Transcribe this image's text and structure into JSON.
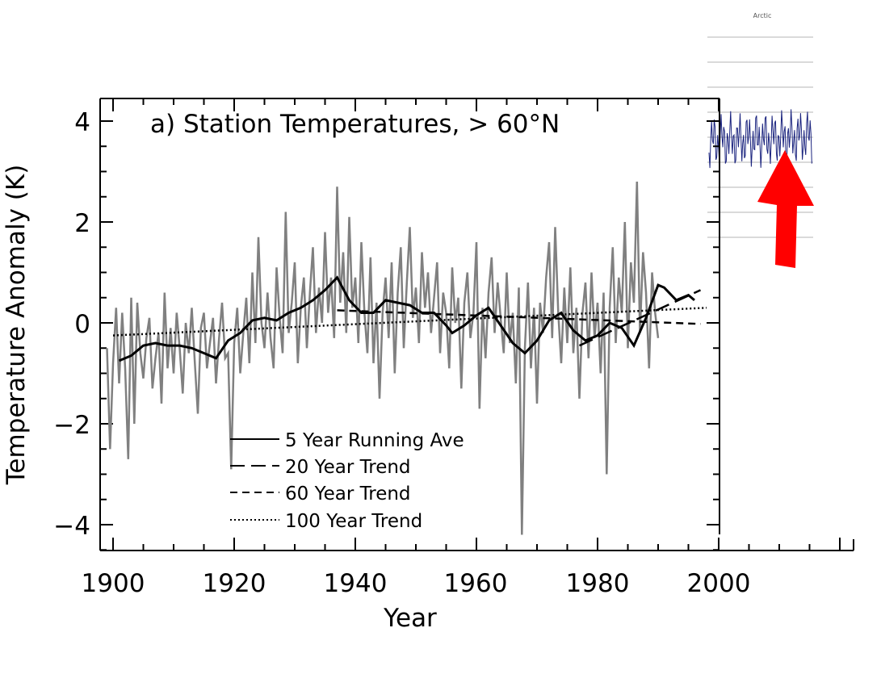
{
  "chart_data": {
    "type": "line",
    "title": "a) Station Temperatures, > 60°N",
    "xlabel": "Year",
    "ylabel": "Temperature Anomaly (K)",
    "xlim": [
      1900,
      2000
    ],
    "ylim": [
      -4.5,
      4.5
    ],
    "x_ticks": [
      "1900",
      "1920",
      "1940",
      "1960",
      "1980",
      "2000"
    ],
    "y_ticks": [
      "4",
      "2",
      "0",
      "−2",
      "−4"
    ],
    "legend_position": "bottom-center",
    "series": [
      {
        "name": "5 Year Running Ave",
        "style": "solid",
        "color": "#000000",
        "x": [
          1901,
          1903,
          1905,
          1907,
          1909,
          1911,
          1913,
          1915,
          1917,
          1919,
          1921,
          1923,
          1925,
          1927,
          1929,
          1931,
          1933,
          1935,
          1937,
          1939,
          1941,
          1943,
          1945,
          1947,
          1949,
          1951,
          1953,
          1955,
          1956,
          1958,
          1960,
          1962,
          1964,
          1966,
          1968,
          1970,
          1972,
          1974,
          1976,
          1978,
          1980,
          1982,
          1984,
          1986,
          1988,
          1990,
          1991,
          1993,
          1995,
          1996
        ],
        "y": [
          -0.75,
          -0.65,
          -0.45,
          -0.4,
          -0.45,
          -0.45,
          -0.5,
          -0.6,
          -0.7,
          -0.35,
          -0.2,
          0.05,
          0.1,
          0.05,
          0.2,
          0.3,
          0.45,
          0.65,
          0.9,
          0.45,
          0.2,
          0.2,
          0.45,
          0.4,
          0.35,
          0.2,
          0.2,
          -0.05,
          -0.2,
          -0.05,
          0.15,
          0.3,
          -0.05,
          -0.4,
          -0.6,
          -0.35,
          0.05,
          0.2,
          -0.15,
          -0.35,
          -0.25,
          0.0,
          -0.1,
          -0.45,
          0.1,
          0.75,
          0.7,
          0.45,
          0.55,
          0.45
        ]
      },
      {
        "name": "20 Year Trend",
        "style": "long-dash",
        "color": "#000000",
        "segments": [
          {
            "x": [
              1977,
              1997
            ],
            "y": [
              -0.45,
              0.65
            ]
          }
        ]
      },
      {
        "name": "60 Year Trend",
        "style": "dash",
        "color": "#000000",
        "segments": [
          {
            "x": [
              1937,
              1997
            ],
            "y": [
              0.25,
              -0.02
            ]
          }
        ]
      },
      {
        "name": "100 Year Trend",
        "style": "dotted",
        "color": "#000000",
        "segments": [
          {
            "x": [
              1900,
              1998
            ],
            "y": [
              -0.25,
              0.3
            ]
          }
        ]
      },
      {
        "name": "",
        "style": "annual",
        "color": "#808080",
        "x_start": 1899,
        "x_step": 0.5,
        "y": [
          -0.5,
          -2.5,
          -0.8,
          0.3,
          -1.2,
          0.2,
          -0.9,
          -2.7,
          0.5,
          -2.0,
          0.4,
          -0.6,
          -1.1,
          -0.3,
          0.1,
          -1.3,
          -0.7,
          -0.2,
          -1.6,
          0.6,
          -0.9,
          -0.1,
          -1.0,
          0.2,
          -0.5,
          -1.4,
          0.0,
          -0.6,
          0.3,
          -0.8,
          -1.8,
          -0.1,
          0.2,
          -0.9,
          -0.4,
          0.1,
          -1.2,
          -0.3,
          0.4,
          -0.7,
          -0.6,
          -2.9,
          -0.4,
          0.3,
          -1.0,
          -0.2,
          0.5,
          -0.8,
          1.0,
          -0.4,
          1.7,
          0.0,
          -0.5,
          0.6,
          -0.3,
          -0.9,
          1.1,
          0.1,
          -0.6,
          2.2,
          -0.2,
          0.4,
          1.2,
          -0.8,
          0.3,
          0.9,
          -0.5,
          0.6,
          1.5,
          -0.2,
          0.7,
          0.0,
          1.8,
          0.2,
          0.9,
          -0.3,
          2.7,
          0.4,
          1.4,
          -0.2,
          2.1,
          0.3,
          0.9,
          -0.4,
          1.6,
          0.2,
          -0.6,
          1.3,
          -0.8,
          0.4,
          -1.5,
          0.2,
          0.9,
          -0.3,
          1.2,
          -1.0,
          0.6,
          1.5,
          -0.5,
          0.8,
          1.9,
          0.1,
          0.7,
          -0.4,
          1.4,
          0.3,
          1.0,
          -0.2,
          0.5,
          1.2,
          -0.6,
          0.6,
          0.2,
          -0.9,
          1.1,
          0.0,
          0.5,
          -1.3,
          0.4,
          1.0,
          -0.3,
          0.2,
          1.6,
          -1.7,
          0.3,
          -0.7,
          0.6,
          1.3,
          -0.2,
          0.8,
          0.1,
          -0.6,
          1.0,
          -0.4,
          0.2,
          -1.2,
          0.7,
          -4.2,
          -0.5,
          0.8,
          -0.9,
          0.3,
          -1.6,
          0.4,
          -0.2,
          0.9,
          1.6,
          -0.3,
          1.9,
          0.2,
          -0.8,
          0.7,
          -0.4,
          1.1,
          -0.6,
          0.3,
          -1.5,
          0.2,
          0.8,
          -0.7,
          1.0,
          -0.3,
          0.4,
          -1.0,
          0.6,
          -3.0,
          0.3,
          1.5,
          -0.4,
          0.9,
          0.2,
          2.0,
          -0.5,
          1.2,
          0.4,
          2.8,
          -0.2,
          1.4,
          0.6,
          -0.9,
          1.0,
          0.2,
          -0.3
        ]
      }
    ]
  },
  "inset": {
    "label": "Arctic",
    "arrow_color": "#ff0000",
    "line_color": "#1a237e"
  }
}
